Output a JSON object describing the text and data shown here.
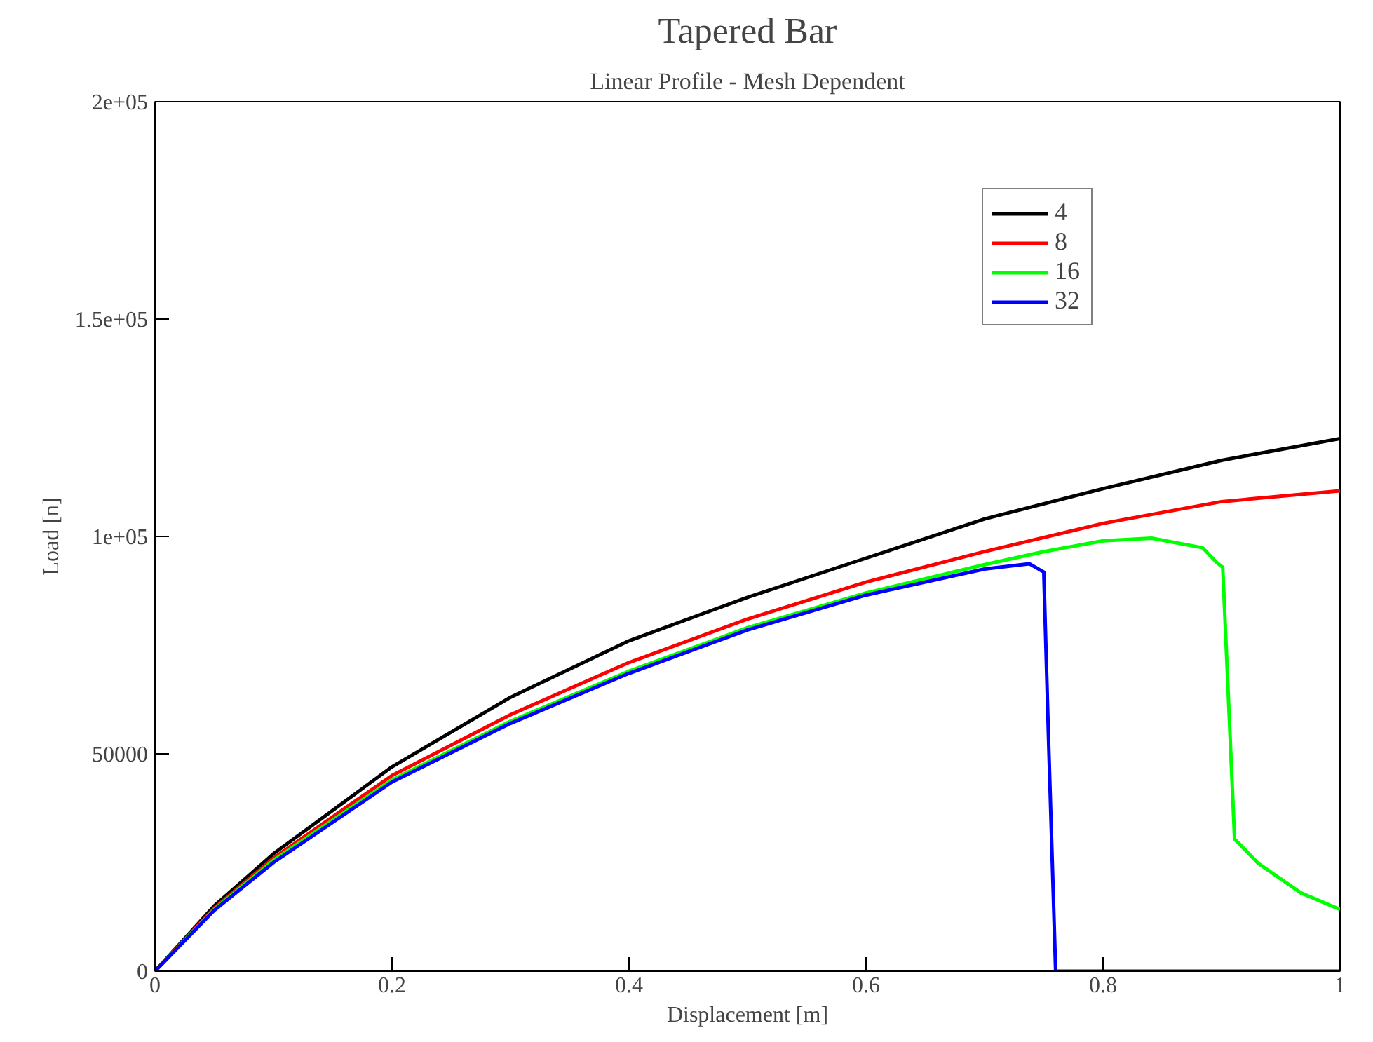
{
  "chart_data": {
    "type": "line",
    "title": "Tapered Bar",
    "subtitle": "Linear Profile - Mesh Dependent",
    "xlabel": "Displacement [m]",
    "ylabel": "Load [n]",
    "xlim": [
      0,
      1
    ],
    "ylim": [
      0,
      200000
    ],
    "xticks": [
      0,
      0.2,
      0.4,
      0.6,
      0.8,
      {
        "value": 1,
        "label": "1"
      }
    ],
    "yticks": [
      0,
      50000,
      {
        "value": 100000,
        "label": "1e+05"
      },
      {
        "value": 150000,
        "label": "1.5e+05"
      },
      {
        "value": 200000,
        "label": "2e+05"
      }
    ],
    "grid": false,
    "legend": "top right",
    "marker": "none",
    "line_style": "solid",
    "series": [
      {
        "name": "4",
        "color": "#000000",
        "x": [
          0,
          0.05,
          0.1,
          0.2,
          0.3,
          0.4,
          0.5,
          0.6,
          0.7,
          0.8,
          0.9,
          1.0
        ],
        "values": [
          0,
          15000,
          27000,
          47000,
          63000,
          76000,
          86000,
          95000,
          104000,
          111000,
          117500,
          122500
        ]
      },
      {
        "name": "8",
        "color": "#ff0000",
        "x": [
          0,
          0.05,
          0.1,
          0.2,
          0.3,
          0.4,
          0.5,
          0.6,
          0.7,
          0.8,
          0.9,
          1.0
        ],
        "values": [
          0,
          14500,
          26000,
          45000,
          59000,
          71000,
          81000,
          89500,
          96500,
          103000,
          108000,
          110500
        ]
      },
      {
        "name": "16",
        "color": "#00ff00",
        "x": [
          0,
          0.05,
          0.1,
          0.2,
          0.3,
          0.4,
          0.5,
          0.6,
          0.7,
          0.75,
          0.8,
          0.841,
          0.884,
          0.896,
          0.901,
          0.911,
          0.931,
          0.967,
          1.0
        ],
        "values": [
          0,
          14200,
          25500,
          44000,
          57500,
          69000,
          79000,
          87000,
          93500,
          96500,
          99000,
          99600,
          97400,
          94000,
          92900,
          30400,
          24800,
          18000,
          14200
        ]
      },
      {
        "name": "32",
        "color": "#0000ff",
        "x": [
          0,
          0.05,
          0.1,
          0.2,
          0.3,
          0.4,
          0.5,
          0.6,
          0.7,
          0.738,
          0.75,
          0.754,
          0.76,
          0.8,
          0.9,
          1.0
        ],
        "values": [
          0,
          14000,
          25000,
          43500,
          57000,
          68500,
          78500,
          86500,
          92500,
          93700,
          91800,
          53500,
          0,
          0,
          0,
          0
        ]
      }
    ]
  }
}
